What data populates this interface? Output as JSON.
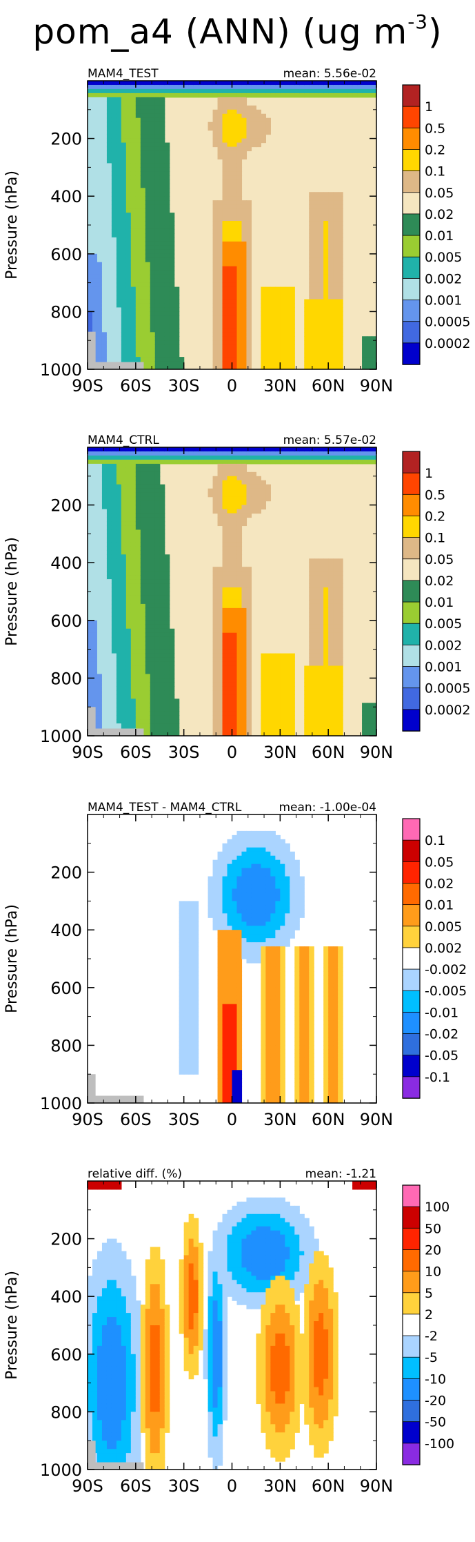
{
  "title": {
    "main": "pom_a4 (ANN) (ug m",
    "exponent": "-3",
    "close": ")"
  },
  "chart_data": [
    {
      "type": "heatmap",
      "left_label": "MAM4_TEST",
      "right_label": "mean: 5.56e-02",
      "ylabel": "Pressure (hPa)",
      "xticks": [
        "90S",
        "60S",
        "30S",
        "0",
        "30N",
        "60N",
        "90N"
      ],
      "yticks": [
        "200",
        "400",
        "600",
        "800",
        "1000"
      ],
      "xlim": [
        -90,
        90
      ],
      "ylim": [
        1000,
        0
      ],
      "colorbar": {
        "labels": [
          "1",
          "0.5",
          "0.2",
          "0.1",
          "0.05",
          "0.02",
          "0.01",
          "0.005",
          "0.002",
          "0.001",
          "0.0005",
          "0.0002"
        ],
        "colors": [
          "#b22222",
          "#ff4500",
          "#ff8c00",
          "#ffd700",
          "#deb887",
          "#f5e6c0",
          "#2e8b57",
          "#9acd32",
          "#20b2aa",
          "#b0e0e6",
          "#6495ed",
          "#4169e1",
          "#0000cd"
        ]
      }
    },
    {
      "type": "heatmap",
      "left_label": "MAM4_CTRL",
      "right_label": "mean: 5.57e-02",
      "ylabel": "Pressure (hPa)",
      "xticks": [
        "90S",
        "60S",
        "30S",
        "0",
        "30N",
        "60N",
        "90N"
      ],
      "yticks": [
        "200",
        "400",
        "600",
        "800",
        "1000"
      ],
      "xlim": [
        -90,
        90
      ],
      "ylim": [
        1000,
        0
      ],
      "colorbar": {
        "labels": [
          "1",
          "0.5",
          "0.2",
          "0.1",
          "0.05",
          "0.02",
          "0.01",
          "0.005",
          "0.002",
          "0.001",
          "0.0005",
          "0.0002"
        ],
        "colors": [
          "#b22222",
          "#ff4500",
          "#ff8c00",
          "#ffd700",
          "#deb887",
          "#f5e6c0",
          "#2e8b57",
          "#9acd32",
          "#20b2aa",
          "#b0e0e6",
          "#6495ed",
          "#4169e1",
          "#0000cd"
        ]
      }
    },
    {
      "type": "heatmap",
      "left_label": "MAM4_TEST - MAM4_CTRL",
      "right_label": "mean: -1.00e-04",
      "ylabel": "Pressure (hPa)",
      "xticks": [
        "90S",
        "60S",
        "30S",
        "0",
        "30N",
        "60N",
        "90N"
      ],
      "yticks": [
        "200",
        "400",
        "600",
        "800",
        "1000"
      ],
      "xlim": [
        -90,
        90
      ],
      "ylim": [
        1000,
        0
      ],
      "colorbar": {
        "labels": [
          "0.1",
          "0.05",
          "0.02",
          "0.01",
          "0.005",
          "0.002",
          "-0.002",
          "-0.005",
          "-0.01",
          "-0.02",
          "-0.05",
          "-0.1"
        ],
        "colors": [
          "#ff69b4",
          "#cc0000",
          "#ff2400",
          "#ff6a00",
          "#ff9c1a",
          "#ffd23c",
          "#ffffff",
          "#aad4ff",
          "#00bfff",
          "#1e90ff",
          "#2f6fde",
          "#0000cd",
          "#8a2be2"
        ]
      }
    },
    {
      "type": "heatmap",
      "left_label": "relative diff. (%)",
      "right_label": "mean: -1.21",
      "ylabel": "Pressure (hPa)",
      "xticks": [
        "90S",
        "60S",
        "30S",
        "0",
        "30N",
        "60N",
        "90N"
      ],
      "yticks": [
        "200",
        "400",
        "600",
        "800",
        "1000"
      ],
      "xlim": [
        -90,
        90
      ],
      "ylim": [
        1000,
        0
      ],
      "colorbar": {
        "labels": [
          "100",
          "50",
          "20",
          "10",
          "5",
          "2",
          "-2",
          "-5",
          "-10",
          "-20",
          "-50",
          "-100"
        ],
        "colors": [
          "#ff69b4",
          "#cc0000",
          "#ff2400",
          "#ff6a00",
          "#ff9c1a",
          "#ffd23c",
          "#ffffff",
          "#aad4ff",
          "#00bfff",
          "#1e90ff",
          "#2f6fde",
          "#0000cd",
          "#8a2be2"
        ]
      }
    }
  ]
}
